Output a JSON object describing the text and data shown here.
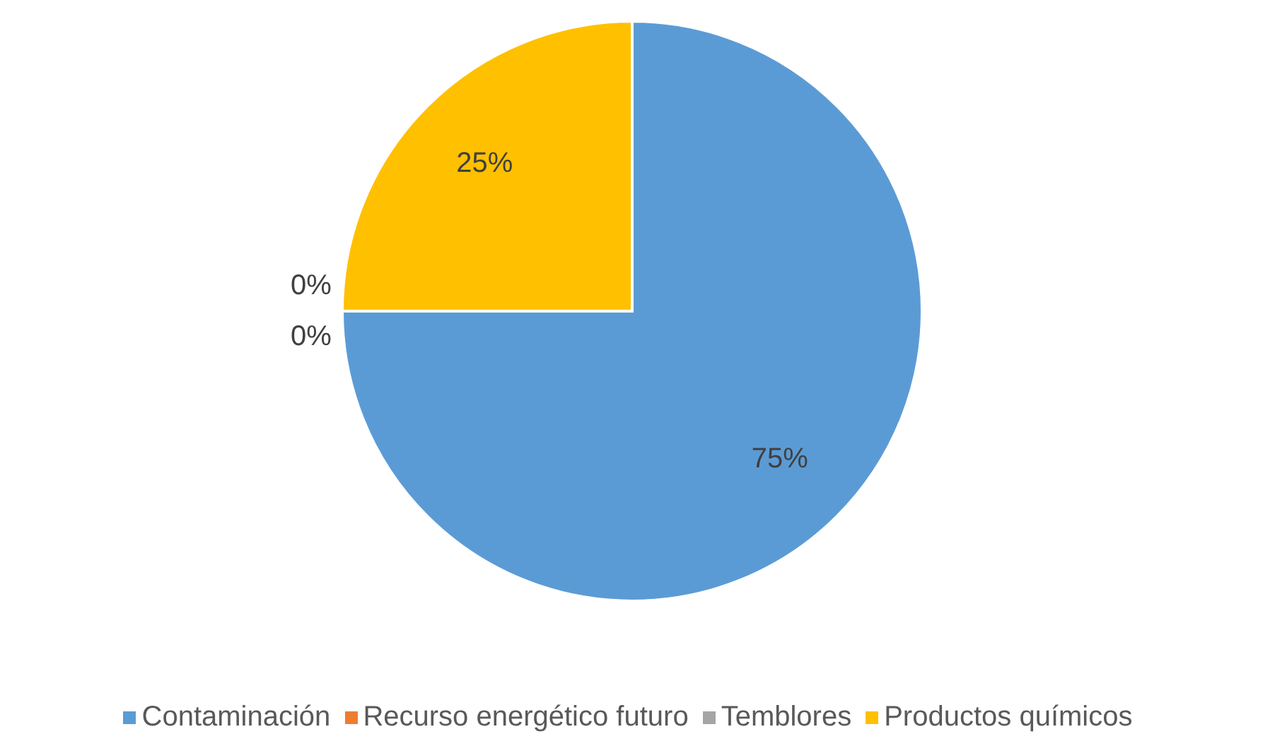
{
  "chart_data": {
    "type": "pie",
    "categories": [
      "Contaminación",
      "Recurso energético futuro",
      "Temblores",
      "Productos químicos"
    ],
    "values": [
      75,
      0,
      0,
      25
    ],
    "colors": [
      "#5b9bd5",
      "#ed7d31",
      "#a5a5a5",
      "#ffc000"
    ],
    "value_labels": [
      "75%",
      "0%",
      "0%",
      "25%"
    ],
    "legend": "bottom"
  }
}
